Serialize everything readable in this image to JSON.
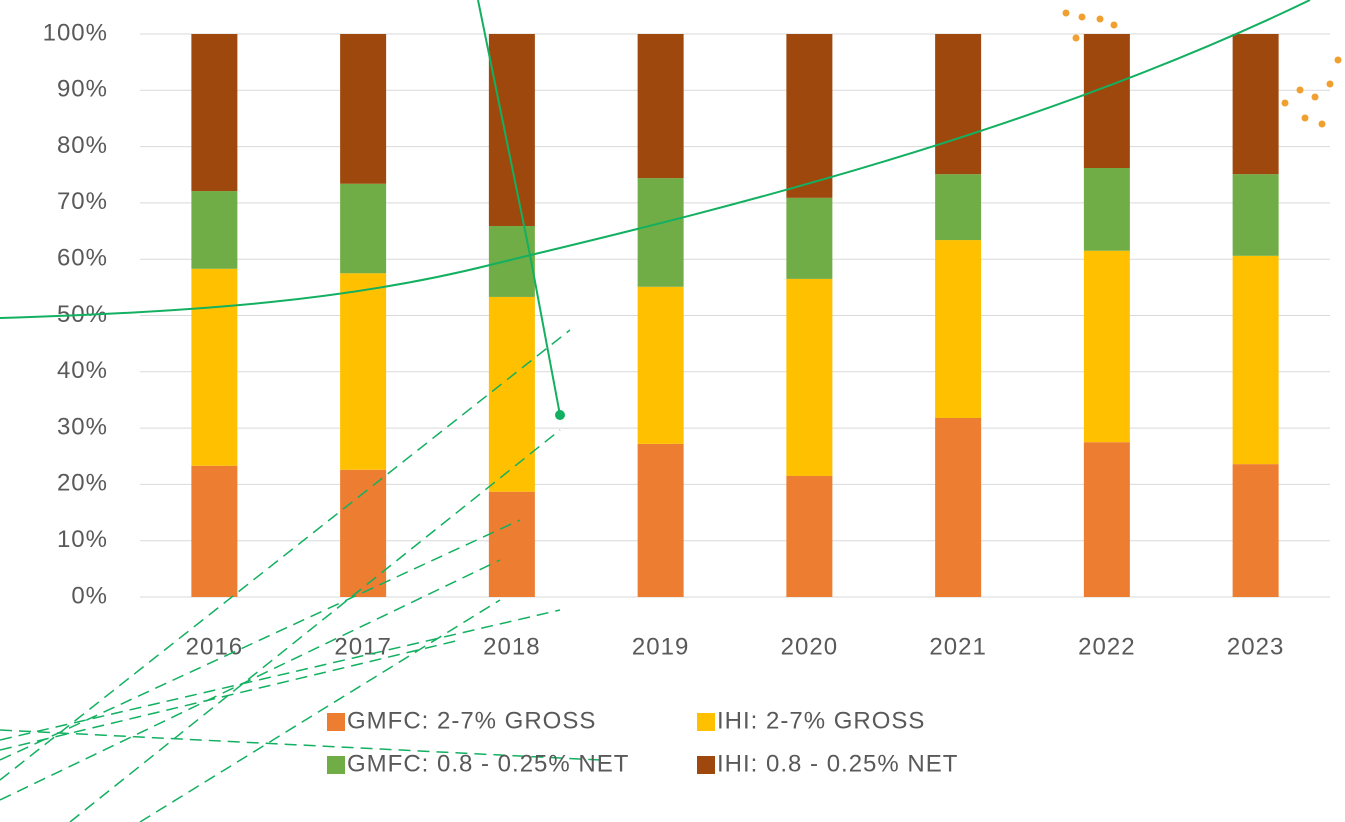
{
  "chart_data": {
    "type": "stacked-bar",
    "categories": [
      "2016",
      "2017",
      "2018",
      "2019",
      "2020",
      "2021",
      "2022",
      "2023"
    ],
    "series": [
      {
        "name": "GMFC: 2-7% GROSS",
        "color": "#ed7d31",
        "values": [
          23.3,
          22.6,
          18.7,
          27.2,
          21.5,
          31.8,
          27.5,
          23.6
        ]
      },
      {
        "name": "IHI: 2-7% GROSS",
        "color": "#ffc000",
        "values": [
          35.0,
          34.9,
          34.6,
          27.9,
          35.0,
          31.6,
          34.0,
          37.0
        ]
      },
      {
        "name": "GMFC: 0.8 - 0.25% NET",
        "color": "#70ad47",
        "values": [
          13.8,
          15.9,
          12.6,
          19.3,
          14.4,
          11.7,
          14.7,
          14.5
        ]
      },
      {
        "name": "IHI: 0.8 - 0.25% NET",
        "color": "#9e480e",
        "values": [
          27.9,
          26.6,
          34.1,
          25.6,
          29.1,
          24.9,
          23.8,
          24.9
        ]
      }
    ],
    "ylim": [
      0,
      100
    ],
    "yticks": [
      {
        "value": 0,
        "label": "0%"
      },
      {
        "value": 10,
        "label": "10%"
      },
      {
        "value": 20,
        "label": "20%"
      },
      {
        "value": 30,
        "label": "30%"
      },
      {
        "value": 40,
        "label": "40%"
      },
      {
        "value": 50,
        "label": "50%"
      },
      {
        "value": 60,
        "label": "60%"
      },
      {
        "value": 70,
        "label": "70%"
      },
      {
        "value": 80,
        "label": "80%"
      },
      {
        "value": 90,
        "label": "90%"
      },
      {
        "value": 100,
        "label": "100%"
      }
    ],
    "grid": true,
    "legend": "bottom"
  }
}
